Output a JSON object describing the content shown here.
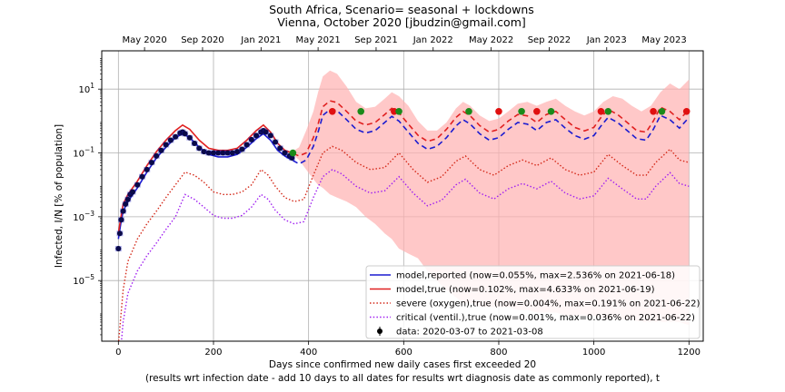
{
  "chart_data": {
    "type": "line",
    "title": "South Africa, Scenario= seasonal + lockdowns",
    "subtitle": "Vienna, October 2020 [jbudzin@gmail.com]",
    "xlabel": "Days since confirmed new daily cases first exceeded 20",
    "xlabel2": "(results wrt infection date - add 10 days to all dates for results wrt diagnosis date as commonly reported), t",
    "ylabel": "Infected, I/N [% of population]",
    "xlim": [
      -35,
      1230
    ],
    "ylim_log10": [
      -6.9,
      2.2
    ],
    "yscale": "log",
    "grid": true,
    "x_ticks": [
      0,
      200,
      400,
      600,
      800,
      1000,
      1200
    ],
    "x_tick_labels": [
      "0",
      "200",
      "400",
      "600",
      "800",
      "1000",
      "1200"
    ],
    "y_ticks_log10": [
      -5,
      -3,
      -1,
      1
    ],
    "y_tick_labels": [
      "10-5",
      "10-3",
      "10-1",
      "101"
    ],
    "top_axis_ticks": [
      55,
      177,
      300,
      420,
      542,
      662,
      784,
      906,
      1027,
      1148
    ],
    "top_axis_labels": [
      "May 2020",
      "Sep 2020",
      "Jan 2021",
      "May 2021",
      "Sep 2021",
      "Jan 2022",
      "May 2022",
      "Sep 2022",
      "Jan 2023",
      "May 2023"
    ],
    "legend_position": "lower-right",
    "legend": [
      {
        "label": "model,reported (now=0.055%, max=2.536% on 2021-06-18)",
        "style": "solid",
        "color": "#1c1cd0"
      },
      {
        "label": "model,true (now=0.102%, max=4.633% on 2021-06-19)",
        "style": "solid",
        "color": "#e02020"
      },
      {
        "label": "severe (oxygen),true (now=0.004%, max=0.191% on 2021-06-22)",
        "style": "dotted",
        "color": "#d42a1a"
      },
      {
        "label": "critical (ventil.),true (now=0.001%, max=0.036% on 2021-06-22)",
        "style": "dotted",
        "color": "#a020f0"
      },
      {
        "label": "data: 2020-03-07 to 2021-03-08",
        "style": "marker",
        "color": "#000000"
      }
    ],
    "series": [
      {
        "name": "model,reported",
        "color": "#1c1cd0",
        "x": [
          0,
          5,
          10,
          20,
          40,
          60,
          80,
          100,
          120,
          135,
          150,
          170,
          190,
          210,
          230,
          250,
          270,
          290,
          305,
          320,
          335,
          350,
          365,
          380,
          395,
          410,
          420,
          430,
          445,
          460,
          480,
          500,
          520,
          540,
          560,
          575,
          590,
          610,
          630,
          650,
          670,
          690,
          710,
          725,
          740,
          760,
          780,
          800,
          820,
          840,
          860,
          880,
          900,
          920,
          940,
          960,
          980,
          1000,
          1015,
          1030,
          1050,
          1070,
          1090,
          1110,
          1125,
          1140,
          1160,
          1180,
          1200
        ],
        "y": [
          0.0002,
          0.0006,
          0.0015,
          0.003,
          0.008,
          0.025,
          0.07,
          0.15,
          0.3,
          0.4,
          0.3,
          0.15,
          0.09,
          0.075,
          0.075,
          0.09,
          0.15,
          0.28,
          0.4,
          0.25,
          0.12,
          0.08,
          0.06,
          0.045,
          0.06,
          0.16,
          0.45,
          1.5,
          2.3,
          2.1,
          1.1,
          0.55,
          0.42,
          0.5,
          0.9,
          1.4,
          1.0,
          0.45,
          0.2,
          0.13,
          0.16,
          0.3,
          0.7,
          1.1,
          0.8,
          0.4,
          0.25,
          0.3,
          0.55,
          0.9,
          0.8,
          0.5,
          0.9,
          1.1,
          0.6,
          0.35,
          0.27,
          0.35,
          0.7,
          1.3,
          0.9,
          0.5,
          0.28,
          0.25,
          0.55,
          1.5,
          1.1,
          0.6,
          1.3
        ]
      },
      {
        "name": "model,true",
        "color": "#e02020",
        "x": [
          0,
          5,
          10,
          20,
          40,
          60,
          80,
          100,
          120,
          135,
          150,
          170,
          190,
          210,
          230,
          250,
          270,
          290,
          305,
          320,
          335,
          350,
          365,
          380,
          395,
          410,
          420,
          430,
          445,
          460,
          480,
          500,
          520,
          540,
          560,
          575,
          590,
          610,
          630,
          650,
          670,
          690,
          710,
          725,
          740,
          760,
          780,
          800,
          820,
          840,
          860,
          880,
          900,
          920,
          940,
          960,
          980,
          1000,
          1015,
          1030,
          1050,
          1070,
          1090,
          1110,
          1125,
          1140,
          1160,
          1180,
          1200
        ],
        "y": [
          0.0003,
          0.0009,
          0.0025,
          0.005,
          0.013,
          0.04,
          0.11,
          0.25,
          0.5,
          0.75,
          0.55,
          0.25,
          0.14,
          0.12,
          0.12,
          0.14,
          0.25,
          0.5,
          0.75,
          0.45,
          0.2,
          0.12,
          0.1,
          0.08,
          0.1,
          0.3,
          0.8,
          2.8,
          4.3,
          3.8,
          2.0,
          1.0,
          0.75,
          0.9,
          1.6,
          2.5,
          1.8,
          0.8,
          0.36,
          0.23,
          0.28,
          0.55,
          1.3,
          2.0,
          1.45,
          0.72,
          0.45,
          0.55,
          1.0,
          1.6,
          1.45,
          0.9,
          1.6,
          2.0,
          1.1,
          0.63,
          0.49,
          0.63,
          1.3,
          2.3,
          1.6,
          0.9,
          0.5,
          0.45,
          1.0,
          2.7,
          2.0,
          1.1,
          2.3
        ]
      },
      {
        "name": "severe (oxygen),true",
        "color": "#d42a1a",
        "x": [
          0,
          10,
          20,
          40,
          60,
          80,
          100,
          120,
          140,
          160,
          180,
          200,
          220,
          240,
          260,
          280,
          300,
          315,
          330,
          350,
          370,
          390,
          410,
          430,
          450,
          470,
          500,
          530,
          560,
          590,
          620,
          650,
          680,
          710,
          730,
          760,
          790,
          820,
          850,
          880,
          910,
          940,
          970,
          1000,
          1030,
          1060,
          1090,
          1110,
          1130,
          1160,
          1180,
          1200
        ],
        "y": [
          1e-07,
          5e-06,
          4e-05,
          0.0002,
          0.0006,
          0.0015,
          0.004,
          0.01,
          0.025,
          0.02,
          0.012,
          0.006,
          0.005,
          0.005,
          0.006,
          0.01,
          0.03,
          0.02,
          0.009,
          0.004,
          0.003,
          0.0035,
          0.02,
          0.1,
          0.16,
          0.12,
          0.05,
          0.03,
          0.035,
          0.1,
          0.03,
          0.012,
          0.018,
          0.055,
          0.08,
          0.03,
          0.02,
          0.04,
          0.06,
          0.04,
          0.07,
          0.03,
          0.02,
          0.025,
          0.09,
          0.04,
          0.02,
          0.02,
          0.05,
          0.13,
          0.06,
          0.05
        ]
      },
      {
        "name": "critical (ventil.),true",
        "color": "#a020f0",
        "x": [
          0,
          10,
          20,
          40,
          60,
          80,
          100,
          120,
          140,
          160,
          180,
          200,
          220,
          240,
          260,
          280,
          300,
          315,
          330,
          350,
          370,
          390,
          410,
          430,
          450,
          470,
          500,
          530,
          560,
          590,
          620,
          650,
          680,
          710,
          730,
          760,
          790,
          820,
          850,
          880,
          910,
          940,
          970,
          1000,
          1030,
          1060,
          1090,
          1110,
          1130,
          1160,
          1180,
          1200
        ],
        "y": [
          1e-08,
          5e-07,
          4e-06,
          2e-05,
          6e-05,
          0.00015,
          0.0004,
          0.001,
          0.005,
          0.0035,
          0.002,
          0.0011,
          0.0009,
          0.0009,
          0.0011,
          0.002,
          0.005,
          0.0035,
          0.0016,
          0.0008,
          0.0006,
          0.0007,
          0.004,
          0.018,
          0.03,
          0.022,
          0.009,
          0.0055,
          0.0065,
          0.018,
          0.0055,
          0.0022,
          0.0033,
          0.01,
          0.015,
          0.0055,
          0.0036,
          0.0075,
          0.011,
          0.0075,
          0.013,
          0.0055,
          0.0036,
          0.0045,
          0.016,
          0.0075,
          0.0036,
          0.0036,
          0.009,
          0.024,
          0.011,
          0.009
        ]
      },
      {
        "name": "data: 2020-03-07 to 2021-03-08",
        "color": "#000000",
        "x": [
          0,
          3,
          6,
          10,
          15,
          20,
          25,
          30,
          40,
          50,
          60,
          70,
          80,
          90,
          100,
          110,
          120,
          130,
          135,
          140,
          150,
          160,
          170,
          180,
          190,
          200,
          210,
          220,
          230,
          240,
          250,
          260,
          270,
          280,
          290,
          300,
          305,
          310,
          320,
          330,
          340,
          350,
          360,
          365
        ],
        "y": [
          0.0001,
          0.0003,
          0.0008,
          0.0015,
          0.0025,
          0.0035,
          0.005,
          0.006,
          0.01,
          0.018,
          0.03,
          0.05,
          0.08,
          0.12,
          0.18,
          0.25,
          0.32,
          0.42,
          0.45,
          0.4,
          0.3,
          0.2,
          0.14,
          0.11,
          0.1,
          0.1,
          0.1,
          0.1,
          0.1,
          0.1,
          0.11,
          0.13,
          0.18,
          0.26,
          0.35,
          0.45,
          0.5,
          0.45,
          0.35,
          0.22,
          0.14,
          0.1,
          0.08,
          0.07
        ]
      }
    ],
    "uncertainty_band": {
      "color": "#ffb0b0",
      "x": [
        370,
        380,
        395,
        410,
        420,
        430,
        445,
        460,
        480,
        500,
        520,
        540,
        560,
        575,
        590,
        610,
        630,
        650,
        670,
        690,
        710,
        725,
        740,
        760,
        780,
        800,
        820,
        840,
        860,
        880,
        900,
        920,
        940,
        960,
        980,
        1000,
        1020,
        1040,
        1060,
        1080,
        1100,
        1120,
        1140,
        1160,
        1180,
        1200
      ],
      "lower": [
        0.08,
        0.06,
        0.03,
        0.015,
        0.01,
        0.008,
        0.005,
        0.004,
        0.003,
        0.002,
        0.001,
        0.0006,
        0.0003,
        0.0002,
        0.0001,
        7e-05,
        5e-05,
        2e-05,
        1e-05,
        5e-06,
        3e-06,
        2e-06,
        2e-06,
        1.5e-06,
        1.5e-06,
        1.5e-06,
        1.5e-06,
        1.2e-06,
        1.2e-06,
        1e-06,
        1e-06,
        1e-06,
        8e-07,
        8e-07,
        8e-07,
        8e-07,
        6e-07,
        6e-07,
        6e-07,
        6e-07,
        5e-07,
        5e-07,
        5e-07,
        5e-07,
        5e-07,
        4e-07
      ],
      "upper": [
        0.12,
        0.15,
        0.5,
        2,
        8,
        25,
        38,
        30,
        12,
        4,
        2.5,
        2.8,
        5,
        8,
        6,
        3,
        1,
        0.5,
        0.5,
        0.9,
        2.5,
        4,
        3,
        1.5,
        1,
        1.2,
        2,
        3.5,
        4,
        3,
        4,
        5,
        3,
        2,
        1.5,
        2,
        4,
        6,
        5,
        3,
        2,
        3,
        8,
        15,
        10,
        20
      ]
    },
    "markers_green": {
      "x": [
        367,
        510,
        590,
        737,
        848,
        910,
        1030,
        1143
      ],
      "y": [
        0.1,
        2.0,
        2.0,
        2.0,
        2.0,
        2.0,
        2.0,
        2.0
      ]
    },
    "markers_red": {
      "x": [
        450,
        580,
        800,
        880,
        1015,
        1125,
        1195
      ],
      "y": [
        2.0,
        2.0,
        2.0,
        2.0,
        2.0,
        2.0,
        2.0
      ]
    }
  }
}
